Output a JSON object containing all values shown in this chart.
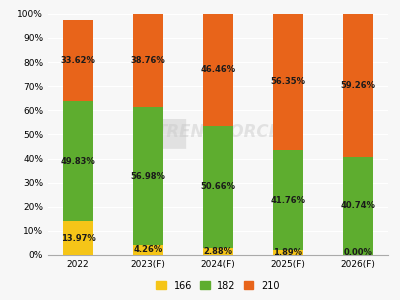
{
  "categories": [
    "2022",
    "2023(F)",
    "2024(F)",
    "2025(F)",
    "2026(F)"
  ],
  "series": {
    "166": [
      13.97,
      4.26,
      2.88,
      1.89,
      0.0
    ],
    "182": [
      49.83,
      56.98,
      50.66,
      41.76,
      40.74
    ],
    "210": [
      33.62,
      38.76,
      46.46,
      56.35,
      59.26
    ]
  },
  "colors": {
    "166": "#F5C518",
    "182": "#5EAD2F",
    "210": "#E8641A"
  },
  "labels_166": [
    "13.97%",
    "4.26%",
    "2.88%",
    "1.89%",
    "0.00%"
  ],
  "labels_182": [
    "49.83%",
    "56.98%",
    "50.66%",
    "41.76%",
    "40.74%"
  ],
  "labels_210": [
    "33.62%",
    "38.76%",
    "46.46%",
    "56.35%",
    "59.26%"
  ],
  "ylim": [
    0,
    102
  ],
  "yticks": [
    0,
    10,
    20,
    30,
    40,
    50,
    60,
    70,
    80,
    90,
    100
  ],
  "ytick_labels": [
    "0%",
    "10%",
    "20%",
    "30%",
    "40%",
    "50%",
    "60%",
    "70%",
    "80%",
    "90%",
    "100%"
  ],
  "legend_labels": [
    "166",
    "182",
    "210"
  ],
  "background_color": "#f7f7f7",
  "bar_width": 0.42,
  "label_fontsize": 6.0,
  "tick_fontsize": 6.5,
  "legend_fontsize": 7.0,
  "watermark_text": "TRENDFORCE",
  "watermark_color": "#c8c8c8",
  "watermark_alpha": 0.45
}
